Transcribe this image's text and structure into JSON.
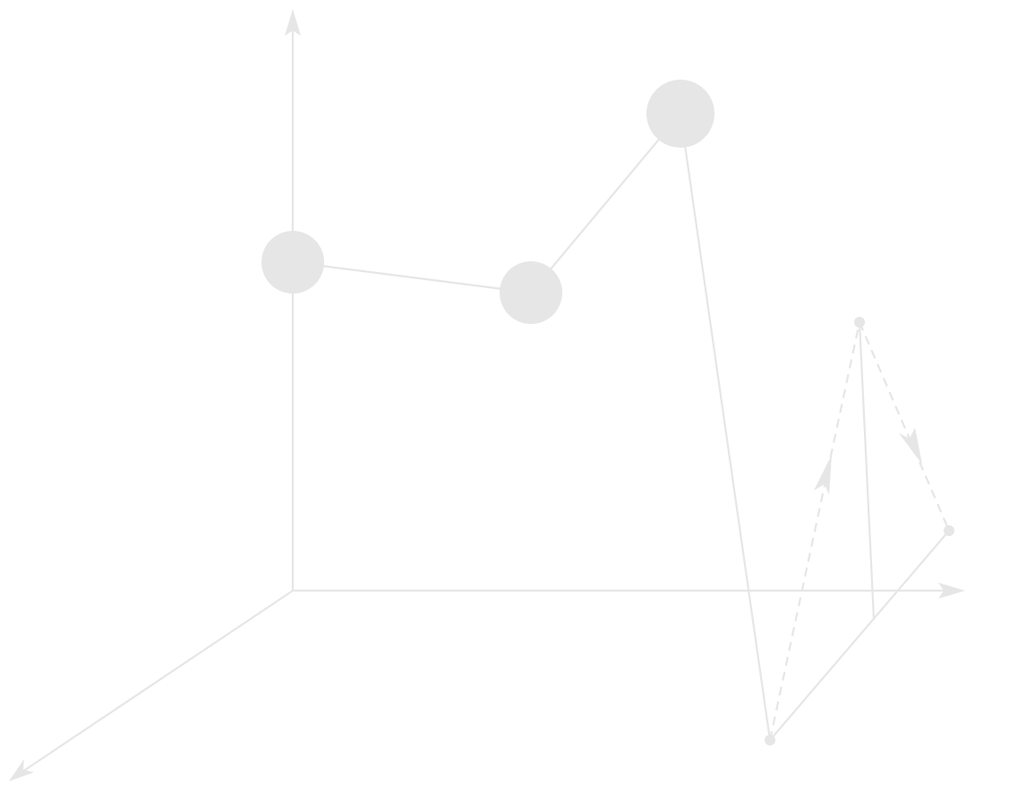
{
  "diagram": {
    "colors": {
      "stroke": "#e6e6e6",
      "node_fill": "#e6e6e6",
      "background": "#ffffff"
    },
    "axes": [
      "vertical-axis",
      "horizontal-axis",
      "depth-axis"
    ],
    "large_nodes": [
      "node-a",
      "node-b",
      "node-c"
    ],
    "small_nodes": [
      "node-d",
      "node-e",
      "node-f"
    ]
  }
}
